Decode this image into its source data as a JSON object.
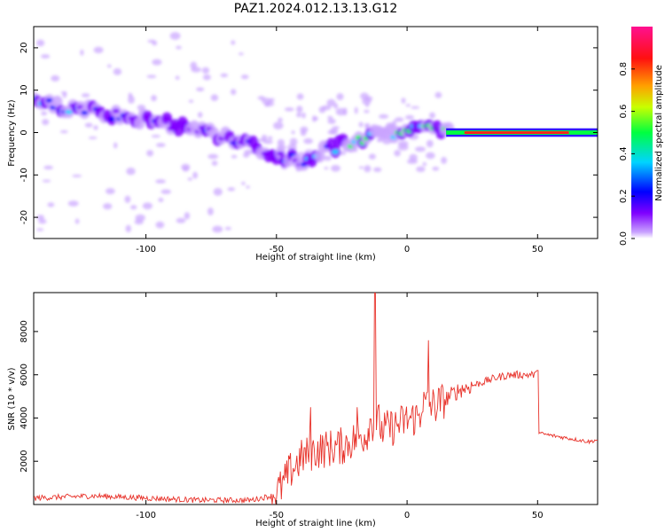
{
  "title": "PAZ1.2024.012.13.13.G12",
  "colors": {
    "snr_line": "#e8322a",
    "axis": "#000000",
    "background": "#ffffff"
  },
  "chart_data": [
    {
      "type": "heatmap",
      "xlabel": "Height of straight line (km)",
      "ylabel": "Frequency (Hz)",
      "xlim": [
        -143,
        73
      ],
      "ylim": [
        -25,
        25
      ],
      "xticks": [
        -100,
        -50,
        0,
        50
      ],
      "yticks": [
        -20,
        -10,
        0,
        10,
        20
      ],
      "colorbar": {
        "label": "Normalized spectral amplitude",
        "range": [
          0,
          1
        ],
        "ticks": [
          0.0,
          0.2,
          0.4,
          0.6,
          0.8
        ],
        "colormap": [
          "#ffffff",
          "#c9a3ff",
          "#7f00ff",
          "#0000ff",
          "#00d4ff",
          "#00ff40",
          "#c8ff00",
          "#ffa000",
          "#ff1010",
          "#ff1090"
        ]
      },
      "ridge": {
        "x": [
          -140,
          -130,
          -120,
          -110,
          -100,
          -90,
          -80,
          -70,
          -60,
          -50,
          -45,
          -40,
          -35,
          -30,
          -25,
          -20,
          -15,
          -10,
          -5,
          0,
          5,
          10,
          15,
          20,
          30,
          40,
          50,
          60,
          73
        ],
        "freq": [
          7,
          6,
          5,
          4,
          3,
          2,
          1,
          -1,
          -3,
          -5,
          -6,
          -7,
          -5,
          -4,
          -3,
          -2,
          -1,
          1,
          0,
          1,
          1,
          1,
          0,
          0,
          0,
          0,
          0,
          0,
          0
        ],
        "peak": [
          0.35,
          0.35,
          0.3,
          0.3,
          0.3,
          0.25,
          0.25,
          0.3,
          0.3,
          0.3,
          0.3,
          0.35,
          0.4,
          0.5,
          0.55,
          0.6,
          0.6,
          0.45,
          0.45,
          0.5,
          0.5,
          0.5,
          0.65,
          0.7,
          0.8,
          0.85,
          0.9,
          0.9,
          0.8
        ]
      }
    },
    {
      "type": "line",
      "xlabel": "Height of straight line (km)",
      "ylabel": "SNR (10 * v/v)",
      "xlim": [
        -143,
        73
      ],
      "ylim": [
        0,
        9800
      ],
      "xticks": [
        -100,
        -50,
        0,
        50
      ],
      "yticks": [
        2000,
        4000,
        6000,
        8000
      ],
      "series": [
        {
          "x": [
            -143,
            -120,
            -100,
            -80,
            -60,
            -52,
            -48,
            -45,
            -40,
            -35,
            -30,
            -25,
            -20,
            -15,
            -12.3,
            -10,
            -5,
            0,
            5,
            8.3,
            10,
            15,
            20,
            25,
            30,
            35,
            40,
            45,
            49.5,
            50.5,
            55,
            60,
            65,
            70,
            73
          ],
          "y": [
            300,
            400,
            300,
            200,
            200,
            400,
            800,
            1500,
            2200,
            2500,
            2600,
            2700,
            3000,
            3300,
            9800,
            3400,
            3600,
            3900,
            4100,
            7600,
            4500,
            4900,
            5300,
            5500,
            5700,
            5900,
            6000,
            6000,
            6000,
            3300,
            3200,
            3100,
            3000,
            2900,
            3000
          ],
          "spikes": [
            {
              "x": -12.3,
              "y": 9800
            },
            {
              "x": 8.3,
              "y": 7600
            },
            {
              "x": 50,
              "y": 6200
            },
            {
              "x": -37,
              "y": 4500
            },
            {
              "x": -19,
              "y": 4500
            }
          ]
        }
      ]
    }
  ]
}
